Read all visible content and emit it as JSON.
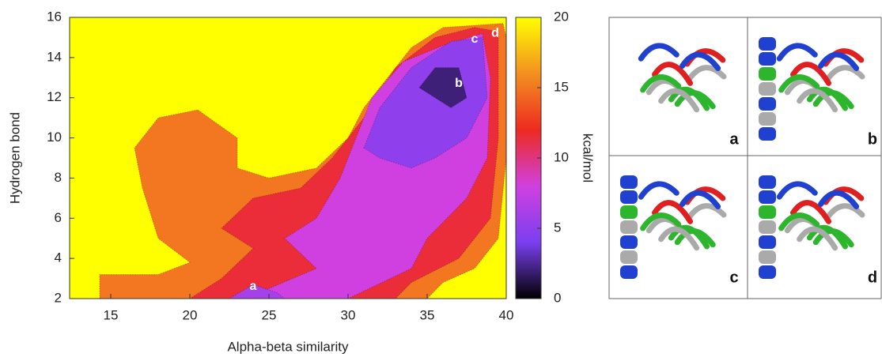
{
  "chart_data": {
    "type": "contour",
    "xlabel": "Alpha-beta similarity",
    "ylabel": "Hydrogen bond",
    "colorbar_label": "kcal/mol",
    "xlim": [
      12.4,
      40
    ],
    "ylim": [
      2,
      16
    ],
    "xticks": [
      15,
      20,
      25,
      30,
      35,
      40
    ],
    "yticks": [
      2,
      4,
      6,
      8,
      10,
      12,
      14,
      16
    ],
    "clim": [
      0,
      20
    ],
    "cticks": [
      0,
      5,
      10,
      15,
      20
    ],
    "colormap": [
      "#000000",
      "#7b3ff0",
      "#d040e0",
      "#ee2a20",
      "#f39020",
      "#ffff00"
    ],
    "regions": [
      {
        "value": 20,
        "points": [
          [
            12.4,
            2
          ],
          [
            40,
            2
          ],
          [
            40,
            16
          ],
          [
            12.4,
            16
          ]
        ]
      },
      {
        "value": 15,
        "points": [
          [
            14.3,
            2
          ],
          [
            14.3,
            3.2
          ],
          [
            18,
            3.2
          ],
          [
            20,
            3.8
          ],
          [
            18,
            5
          ],
          [
            17,
            7.5
          ],
          [
            16.5,
            9.5
          ],
          [
            18,
            11
          ],
          [
            20.5,
            11.4
          ],
          [
            23,
            10
          ],
          [
            23,
            8.5
          ],
          [
            25,
            8
          ],
          [
            28,
            8.5
          ],
          [
            30,
            10
          ],
          [
            31,
            11.5
          ],
          [
            34,
            14.5
          ],
          [
            36,
            15.5
          ],
          [
            39.8,
            15.7
          ],
          [
            40,
            15
          ],
          [
            40,
            9
          ],
          [
            39.5,
            5
          ],
          [
            38,
            3.5
          ],
          [
            36,
            2.8
          ],
          [
            35,
            2
          ]
        ]
      },
      {
        "value": 11.5,
        "points": [
          [
            20,
            2
          ],
          [
            22,
            3
          ],
          [
            24,
            4.5
          ],
          [
            22,
            5.5
          ],
          [
            24,
            7
          ],
          [
            27,
            7.5
          ],
          [
            29,
            9
          ],
          [
            31,
            11
          ],
          [
            33,
            13.5
          ],
          [
            35.5,
            15
          ],
          [
            38,
            15.5
          ],
          [
            39.5,
            15.3
          ],
          [
            39.5,
            10
          ],
          [
            39,
            6
          ],
          [
            37,
            4
          ],
          [
            34,
            2.8
          ],
          [
            33,
            2
          ]
        ]
      },
      {
        "value": 8,
        "points": [
          [
            23,
            2
          ],
          [
            25,
            2.5
          ],
          [
            28,
            3.5
          ],
          [
            26,
            5
          ],
          [
            28,
            6
          ],
          [
            29.5,
            8
          ],
          [
            30.5,
            10
          ],
          [
            31.5,
            12
          ],
          [
            33.5,
            13.8
          ],
          [
            36,
            14.6
          ],
          [
            38.5,
            15.2
          ],
          [
            39,
            13
          ],
          [
            38.8,
            9
          ],
          [
            37.5,
            7
          ],
          [
            35,
            5
          ],
          [
            34,
            3.5
          ],
          [
            30,
            2
          ]
        ]
      },
      {
        "value": 5,
        "points": [
          [
            31,
            9.5
          ],
          [
            32,
            11.5
          ],
          [
            34,
            13.5
          ],
          [
            36.5,
            14.8
          ],
          [
            38.5,
            15
          ],
          [
            38.8,
            12
          ],
          [
            37.5,
            10
          ],
          [
            35.5,
            9
          ],
          [
            34,
            8.5
          ],
          [
            32,
            9
          ]
        ]
      },
      {
        "value": 6,
        "points": [
          [
            22.5,
            2
          ],
          [
            24,
            2.7
          ],
          [
            25.5,
            2.3
          ],
          [
            26,
            2
          ]
        ]
      },
      {
        "value": 2,
        "points": [
          [
            34.5,
            12.5
          ],
          [
            35.5,
            13.5
          ],
          [
            37,
            13.5
          ],
          [
            37.5,
            12
          ],
          [
            36.5,
            11.5
          ]
        ]
      }
    ],
    "annotations": [
      {
        "text": "a",
        "x": 24,
        "y": 2.6
      },
      {
        "text": "b",
        "x": 37,
        "y": 12.7
      },
      {
        "text": "c",
        "x": 38,
        "y": 14.9
      },
      {
        "text": "d",
        "x": 39.3,
        "y": 15.2
      }
    ]
  },
  "panels": {
    "labels": [
      "a",
      "b",
      "c",
      "d"
    ]
  }
}
